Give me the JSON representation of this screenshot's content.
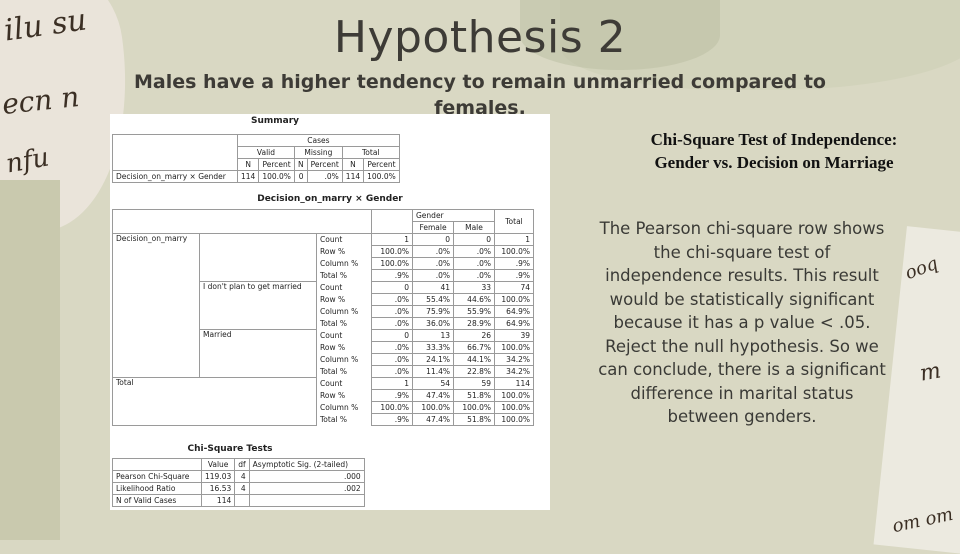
{
  "slide": {
    "title": "Hypothesis 2",
    "subtitle": "Males have a higher tendency to remain unmarried compared to females.",
    "chi_heading_line1": "Chi-Square Test of Independence:",
    "chi_heading_line2": "Gender vs. Decision on Marriage",
    "explanation": "The Pearson chi-square row shows the chi-square test of independence results. This result would be statistically significant because it has a p value < .05. Reject the null hypothesis. So we can conclude, there is a significant difference in marital status between genders."
  },
  "summary": {
    "title": "Summary",
    "cases_label": "Cases",
    "valid_label": "Valid",
    "missing_label": "Missing",
    "total_label": "Total",
    "n_label": "N",
    "percent_label": "Percent",
    "row_label": "Decision_on_marry × Gender",
    "valid_n": "114",
    "valid_pct": "100.0%",
    "missing_n": "0",
    "missing_pct": ".0%",
    "total_n": "114",
    "total_pct": "100.0%"
  },
  "crosstab": {
    "title": "Decision_on_marry × Gender",
    "gender_label": "Gender",
    "female_label": "Female",
    "male_label": "Male",
    "total_label": "Total",
    "var_label": "Decision_on_marry",
    "total_row_label": "Total",
    "groups": [
      {
        "name": "",
        "rows": [
          {
            "stat": "Count",
            "c1": "1",
            "female": "0",
            "male": "0",
            "total": "1"
          },
          {
            "stat": "Row %",
            "c1": "100.0%",
            "female": ".0%",
            "male": ".0%",
            "total": "100.0%"
          },
          {
            "stat": "Column %",
            "c1": "100.0%",
            "female": ".0%",
            "male": ".0%",
            "total": ".9%"
          },
          {
            "stat": "Total %",
            "c1": ".9%",
            "female": ".0%",
            "male": ".0%",
            "total": ".9%"
          }
        ]
      },
      {
        "name": "I don't plan to get married",
        "rows": [
          {
            "stat": "Count",
            "c1": "0",
            "female": "41",
            "male": "33",
            "total": "74"
          },
          {
            "stat": "Row %",
            "c1": ".0%",
            "female": "55.4%",
            "male": "44.6%",
            "total": "100.0%"
          },
          {
            "stat": "Column %",
            "c1": ".0%",
            "female": "75.9%",
            "male": "55.9%",
            "total": "64.9%"
          },
          {
            "stat": "Total %",
            "c1": ".0%",
            "female": "36.0%",
            "male": "28.9%",
            "total": "64.9%"
          }
        ]
      },
      {
        "name": "Married",
        "rows": [
          {
            "stat": "Count",
            "c1": "0",
            "female": "13",
            "male": "26",
            "total": "39"
          },
          {
            "stat": "Row %",
            "c1": ".0%",
            "female": "33.3%",
            "male": "66.7%",
            "total": "100.0%"
          },
          {
            "stat": "Column %",
            "c1": ".0%",
            "female": "24.1%",
            "male": "44.1%",
            "total": "34.2%"
          },
          {
            "stat": "Total %",
            "c1": ".0%",
            "female": "11.4%",
            "male": "22.8%",
            "total": "34.2%"
          }
        ]
      }
    ],
    "total_rows": [
      {
        "stat": "Count",
        "c1": "1",
        "female": "54",
        "male": "59",
        "total": "114"
      },
      {
        "stat": "Row %",
        "c1": ".9%",
        "female": "47.4%",
        "male": "51.8%",
        "total": "100.0%"
      },
      {
        "stat": "Column %",
        "c1": "100.0%",
        "female": "100.0%",
        "male": "100.0%",
        "total": "100.0%"
      },
      {
        "stat": "Total %",
        "c1": ".9%",
        "female": "47.4%",
        "male": "51.8%",
        "total": "100.0%"
      }
    ]
  },
  "chisq": {
    "title": "Chi-Square Tests",
    "value_label": "Value",
    "df_label": "df",
    "sig_label": "Asymptotic Sig. (2-tailed)",
    "rows": [
      {
        "name": "Pearson Chi-Square",
        "value": "119.03",
        "df": "4",
        "sig": ".000"
      },
      {
        "name": "Likelihood Ratio",
        "value": "16.53",
        "df": "4",
        "sig": ".002"
      },
      {
        "name": "N of Valid Cases",
        "value": "114",
        "df": "",
        "sig": ""
      }
    ]
  },
  "background_script": {
    "line1": "ilu su",
    "line2": "ecn n",
    "line3": "nfu",
    "right1": "ooq",
    "right2": "m",
    "right3": "om om"
  },
  "colors": {
    "background": "#d9d8c3",
    "title_text": "#3d3b36",
    "panel": "#ffffff"
  }
}
